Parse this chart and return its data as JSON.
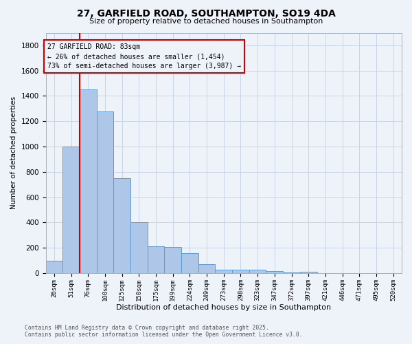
{
  "title_line1": "27, GARFIELD ROAD, SOUTHAMPTON, SO19 4DA",
  "title_line2": "Size of property relative to detached houses in Southampton",
  "xlabel": "Distribution of detached houses by size in Southampton",
  "ylabel": "Number of detached properties",
  "categories": [
    "26sqm",
    "51sqm",
    "76sqm",
    "100sqm",
    "125sqm",
    "150sqm",
    "175sqm",
    "199sqm",
    "224sqm",
    "249sqm",
    "273sqm",
    "298sqm",
    "323sqm",
    "347sqm",
    "372sqm",
    "397sqm",
    "421sqm",
    "446sqm",
    "471sqm",
    "495sqm",
    "520sqm"
  ],
  "values": [
    100,
    1000,
    1450,
    1280,
    750,
    400,
    210,
    205,
    160,
    70,
    30,
    25,
    30,
    15,
    5,
    10,
    0,
    0,
    0,
    0,
    0
  ],
  "bar_color": "#aec6e8",
  "bar_edge_color": "#5b9bd5",
  "grid_color": "#c8d4e8",
  "background_color": "#eef2f9",
  "red_line_index": 2,
  "annotation_text_line1": "27 GARFIELD ROAD: 83sqm",
  "annotation_text_line2": "← 26% of detached houses are smaller (1,454)",
  "annotation_text_line3": "73% of semi-detached houses are larger (3,987) →",
  "annotation_box_color": "#cc0000",
  "ylim": [
    0,
    1900
  ],
  "yticks": [
    0,
    200,
    400,
    600,
    800,
    1000,
    1200,
    1400,
    1600,
    1800
  ],
  "footer_line1": "Contains HM Land Registry data © Crown copyright and database right 2025.",
  "footer_line2": "Contains public sector information licensed under the Open Government Licence v3.0."
}
